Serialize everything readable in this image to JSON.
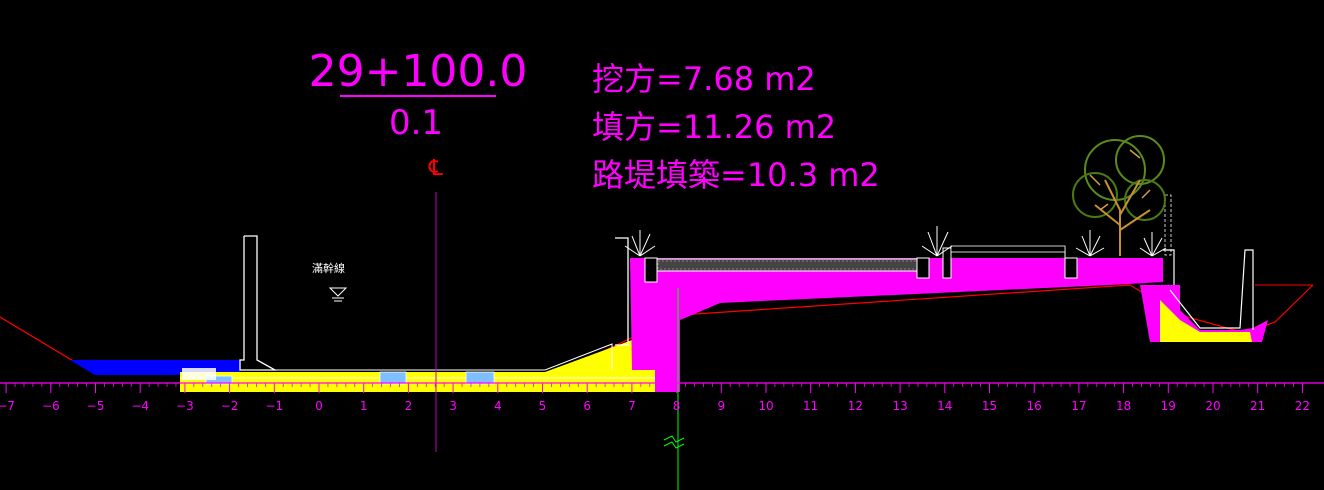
{
  "station": {
    "chainage": "29+100.0",
    "elevation": "0.1"
  },
  "quantities": {
    "cut": "挖方=7.68  m2",
    "fill": "填方=11.26  m2",
    "embankment": "路堤填築=10.3  m2"
  },
  "centerline_symbol": "℄",
  "water_level_label": "滿幹線",
  "axis": {
    "ticks": [
      -7,
      -6,
      -5,
      -4,
      -3,
      -2,
      -1,
      0,
      1,
      2,
      3,
      4,
      5,
      6,
      7,
      8,
      9,
      10,
      11,
      12,
      13,
      14,
      15,
      16,
      17,
      18,
      19,
      20,
      21,
      22
    ]
  },
  "colors": {
    "background": "#000000",
    "magenta": "#ff00ff",
    "yellow": "#ffff00",
    "water": "#0000ff",
    "ground_line": "#ff0000",
    "white": "#ffffff",
    "centerline": "#c000c0",
    "survey_line": "#00ff00"
  }
}
